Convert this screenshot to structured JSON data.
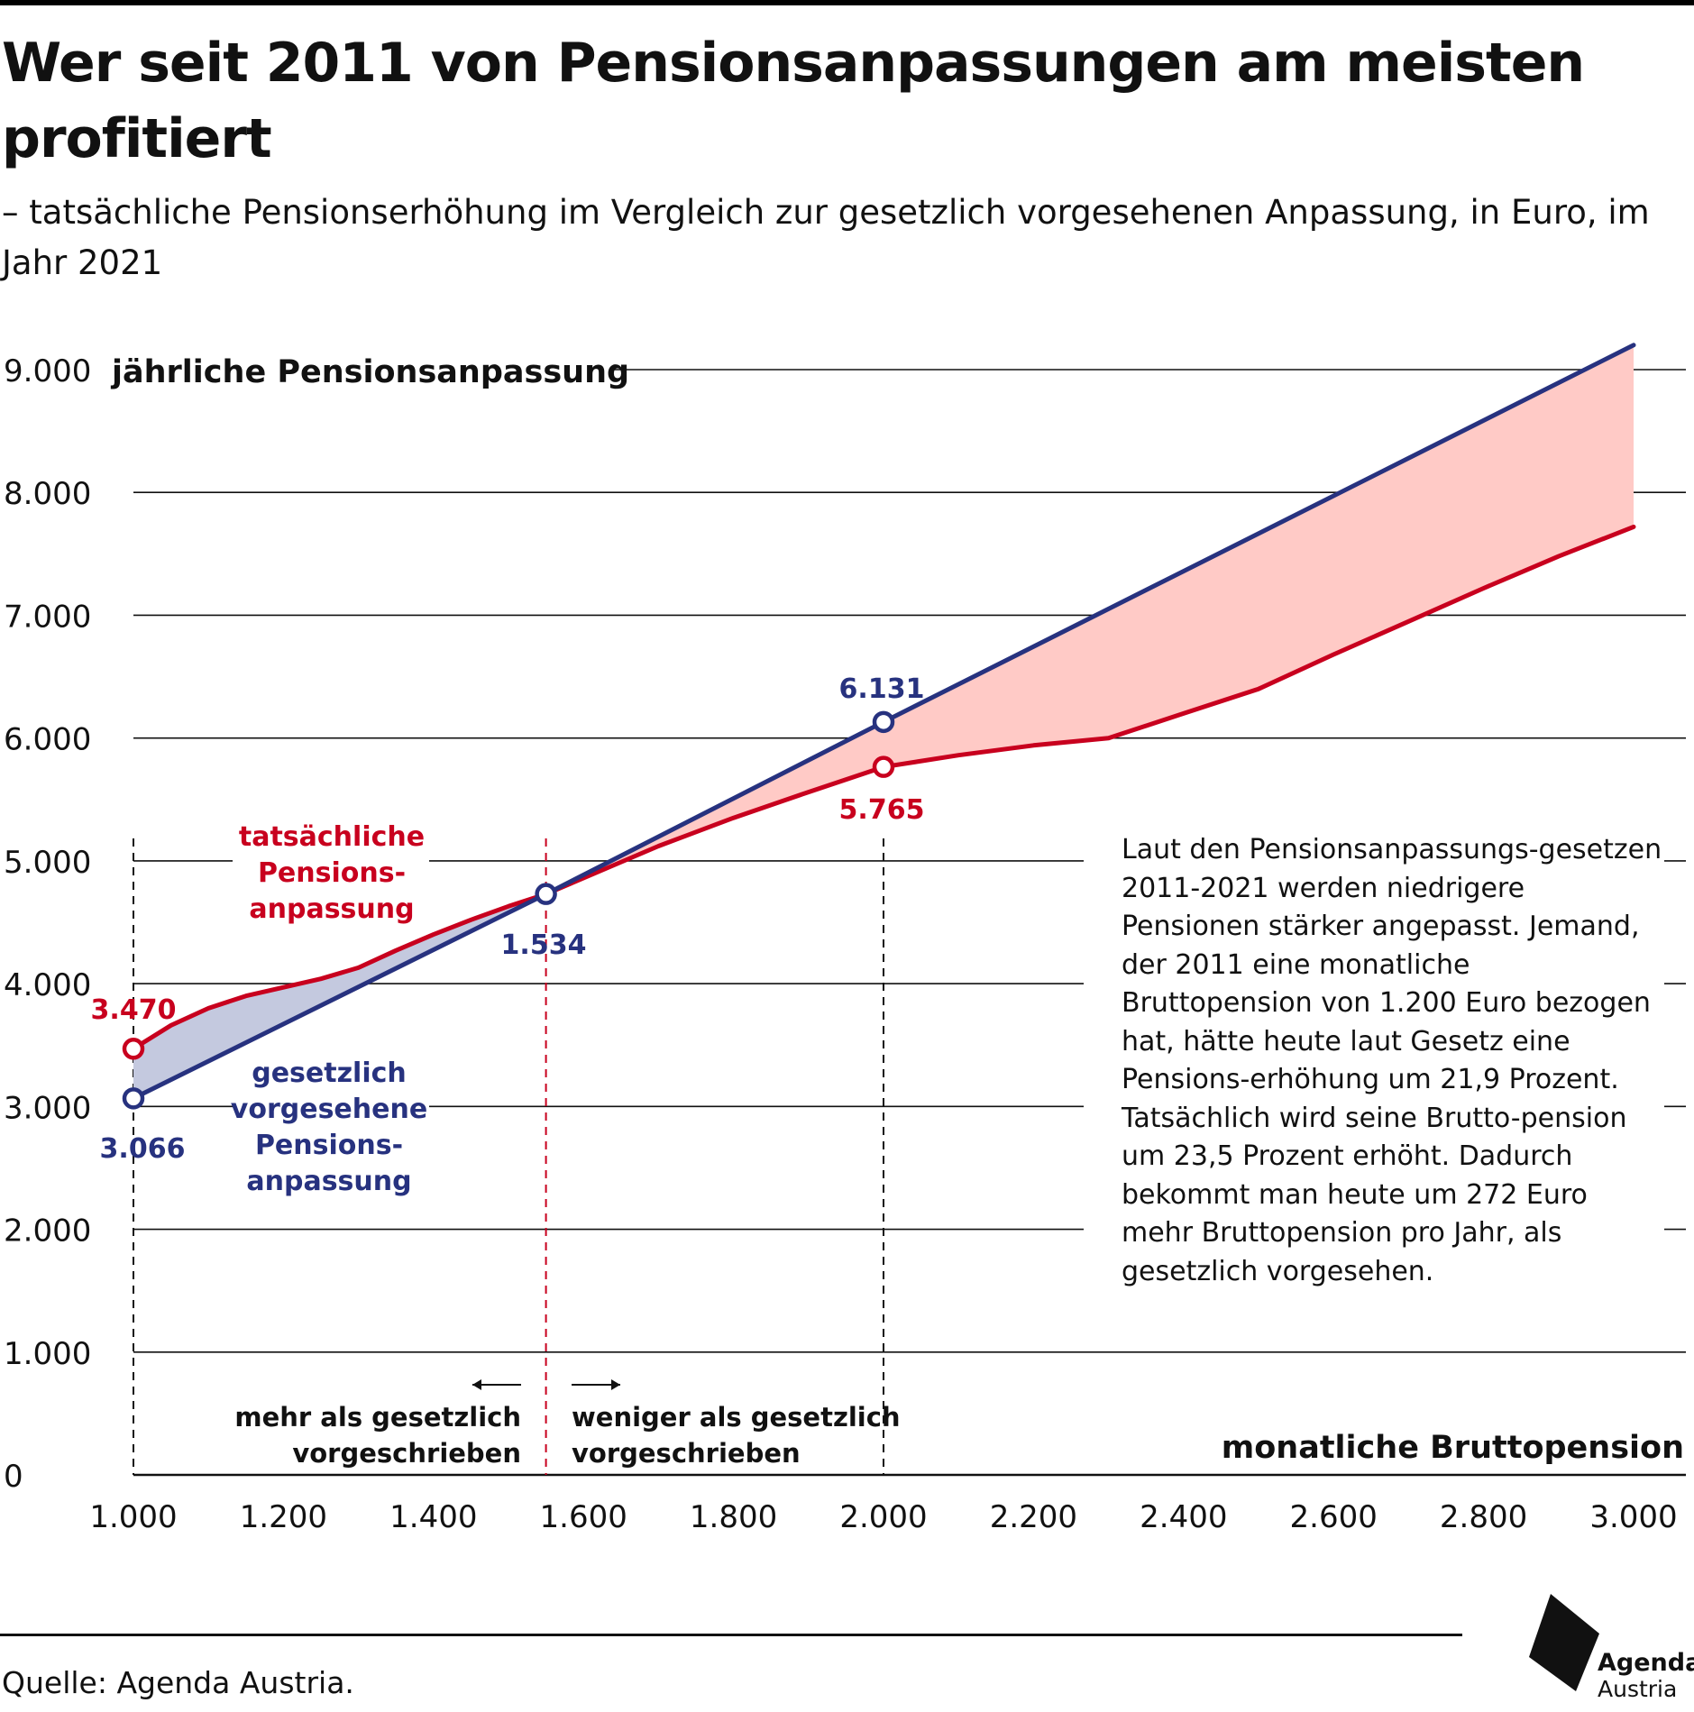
{
  "header": {
    "title": "Wer seit 2011 von Pensionsanpassungen am meisten profitiert",
    "subtitle": "– tatsächliche Pensionserhöhung im Vergleich zur gesetzlich vorgesehenen Anpassung, in Euro, im Jahr 2021"
  },
  "colors": {
    "actual": "#c8001e",
    "legal": "#27327f",
    "area_more": "#c4c9df",
    "area_less": "#ffcac6",
    "grid": "#111111",
    "text": "#111111"
  },
  "chart_data": {
    "type": "line",
    "title": "Wer seit 2011 von Pensionsanpassungen am meisten profitiert",
    "subtitle": "– tatsächliche Pensionserhöhung im Vergleich zur gesetzlich vorgesehenen Anpassung, in Euro, im Jahr 2021",
    "xlabel": "monatliche Bruttopension",
    "ylabel": "jährliche Pensionsanpassung",
    "xlim": [
      1000,
      3000
    ],
    "ylim": [
      0,
      9000
    ],
    "x_ticks": [
      1000,
      1200,
      1400,
      1600,
      1800,
      2000,
      2200,
      2400,
      2600,
      2800,
      3000
    ],
    "x_tick_labels": [
      "1.000",
      "1.200",
      "1.400",
      "1.600",
      "1.800",
      "2.000",
      "2.200",
      "2.400",
      "2.600",
      "2.800",
      "3.000"
    ],
    "y_ticks": [
      0,
      1000,
      2000,
      3000,
      4000,
      5000,
      6000,
      7000,
      8000,
      9000
    ],
    "y_tick_labels": [
      "0",
      "1.000",
      "2.000",
      "3.000",
      "4.000",
      "5.000",
      "6.000",
      "7.000",
      "8.000",
      "9.000"
    ],
    "grid": "horizontal",
    "series": [
      {
        "name": "tatsächliche Pensionsanpassung",
        "color": "#c8001e",
        "points": [
          [
            1000,
            3470
          ],
          [
            1050,
            3660
          ],
          [
            1100,
            3800
          ],
          [
            1150,
            3900
          ],
          [
            1200,
            3970
          ],
          [
            1250,
            4040
          ],
          [
            1300,
            4130
          ],
          [
            1350,
            4270
          ],
          [
            1400,
            4400
          ],
          [
            1450,
            4520
          ],
          [
            1500,
            4630
          ],
          [
            1550,
            4730
          ],
          [
            1600,
            4860
          ],
          [
            1700,
            5120
          ],
          [
            1800,
            5350
          ],
          [
            1900,
            5560
          ],
          [
            2000,
            5765
          ],
          [
            2100,
            5860
          ],
          [
            2200,
            5940
          ],
          [
            2300,
            6000
          ],
          [
            2400,
            6200
          ],
          [
            2500,
            6400
          ],
          [
            2600,
            6680
          ],
          [
            2700,
            6950
          ],
          [
            2800,
            7220
          ],
          [
            2900,
            7480
          ],
          [
            3000,
            7720
          ]
        ]
      },
      {
        "name": "gesetzlich vorgesehene Pensionsanpassung",
        "color": "#27327f",
        "points": [
          [
            1000,
            3066
          ],
          [
            1550,
            4730
          ],
          [
            2000,
            6131
          ],
          [
            3000,
            9200
          ]
        ]
      }
    ],
    "markers": [
      {
        "series": "tatsächliche Pensionsanpassung",
        "x": 1000,
        "y": 3470,
        "label": "3.470"
      },
      {
        "series": "gesetzlich vorgesehene Pensionsanpassung",
        "x": 1000,
        "y": 3066,
        "label": "3.066"
      },
      {
        "series": "gesetzlich vorgesehene Pensionsanpassung",
        "x": 1550,
        "y": 4730,
        "label": "1.534"
      },
      {
        "series": "gesetzlich vorgesehene Pensionsanpassung",
        "x": 2000,
        "y": 6131,
        "label": "6.131"
      },
      {
        "series": "tatsächliche Pensionsanpassung",
        "x": 2000,
        "y": 5765,
        "label": "5.765"
      }
    ],
    "reference_lines": [
      {
        "x": 1000,
        "color": "#111111"
      },
      {
        "x": 1550,
        "color": "#c8001e"
      },
      {
        "x": 2000,
        "color": "#111111"
      }
    ],
    "annotations": {
      "actual_label": [
        "tatsächliche",
        "Pensions-",
        "anpassung"
      ],
      "legal_label": [
        "gesetzlich",
        "vorgesehene",
        "Pensions-",
        "anpassung"
      ],
      "left_region": [
        "mehr als gesetzlich",
        "vorgeschrieben"
      ],
      "right_region": [
        "weniger als gesetzlich",
        "vorgeschrieben"
      ]
    }
  },
  "note": {
    "text": "Laut den Pensionsanpassungs-gesetzen 2011-2021 werden niedrigere Pensionen stärker angepasst. Jemand, der 2011 eine monatliche Bruttopension von 1.200 Euro bezogen hat, hätte heute laut Gesetz eine Pensions-erhöhung um 21,9 Prozent. Tatsächlich wird seine Brutto-pension um 23,5 Prozent erhöht. Dadurch bekommt man heute um 272 Euro mehr Bruttopension pro Jahr, als gesetzlich vorgesehen."
  },
  "footer": {
    "source": "Quelle: Agenda Austria.",
    "logo_line1": "Agenda",
    "logo_line2": "Austria"
  }
}
